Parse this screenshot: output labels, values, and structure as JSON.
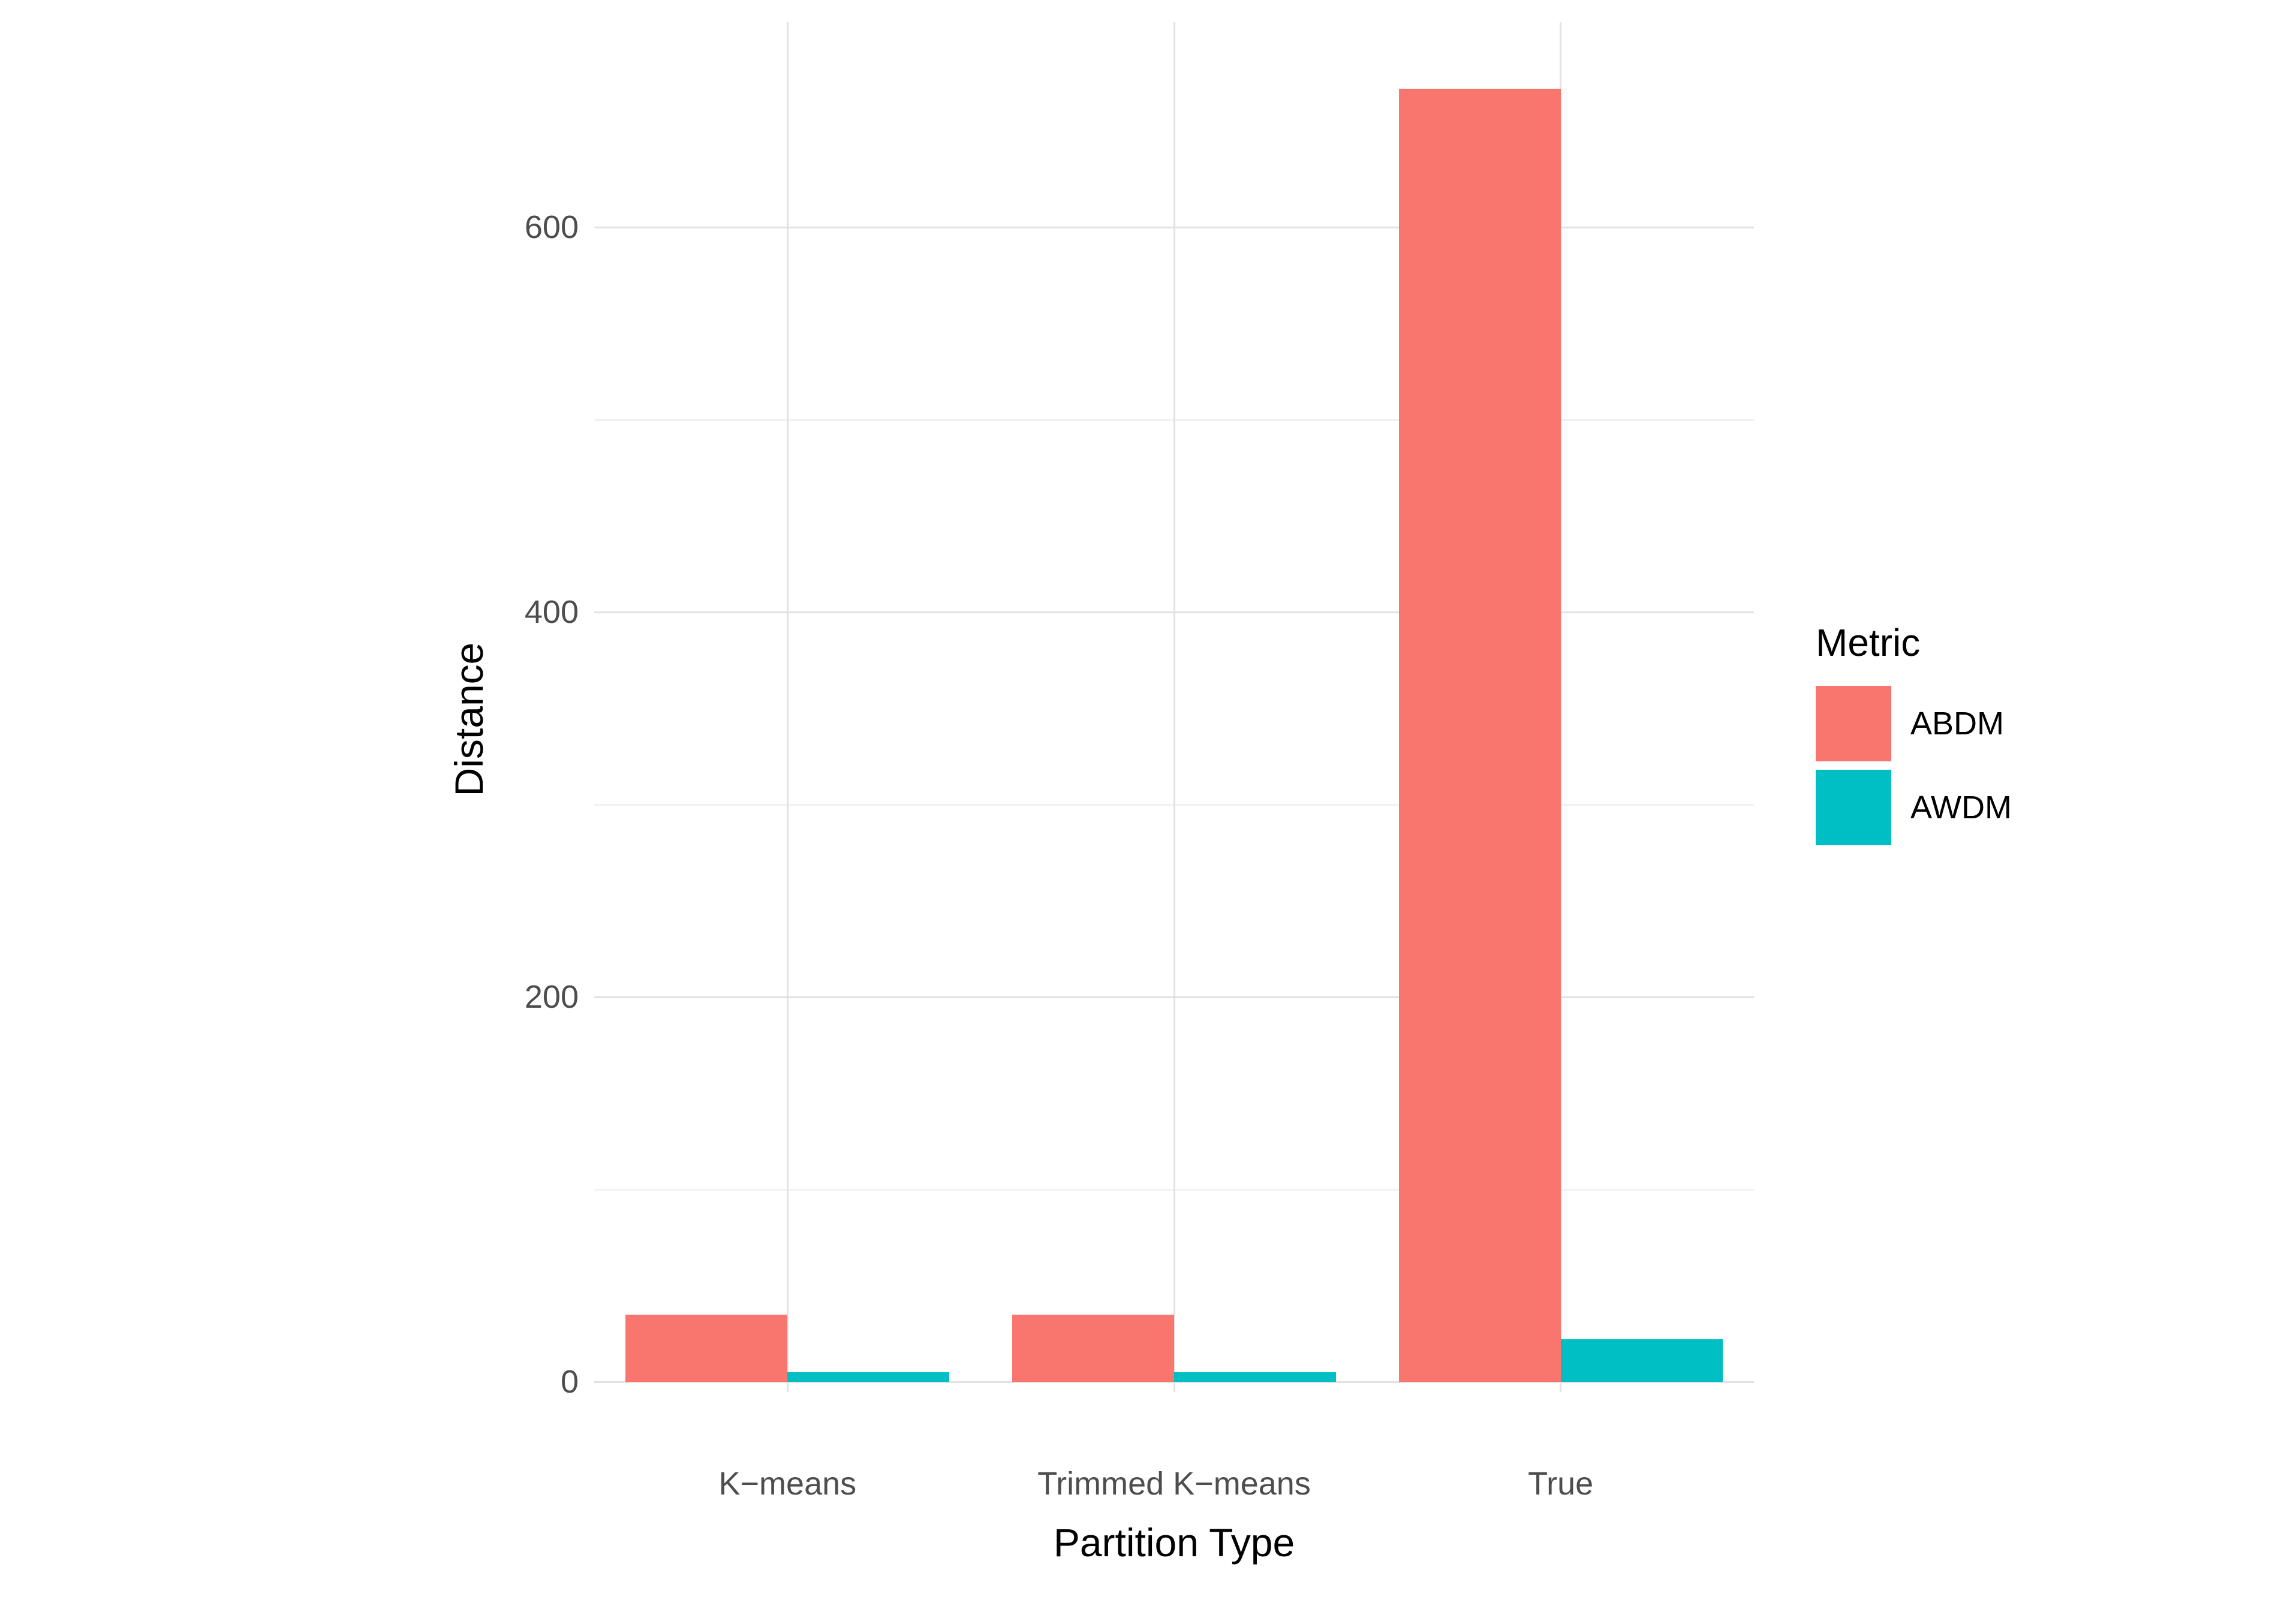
{
  "chart_data": {
    "type": "bar",
    "title": "",
    "xlabel": "Partition Type",
    "ylabel": "Distance",
    "legend_title": "Metric",
    "legend_position": "right",
    "categories": [
      "K−means",
      "Trimmed K−means",
      "True"
    ],
    "series": [
      {
        "name": "ABDM",
        "color": "#F8766D",
        "values": [
          35,
          35,
          672
        ]
      },
      {
        "name": "AWDM",
        "color": "#00BFC4",
        "values": [
          5,
          5,
          22
        ]
      }
    ],
    "y_ticks": [
      0,
      200,
      400,
      600
    ],
    "y_minor_ticks": [
      100,
      300,
      500
    ],
    "ylim": [
      0,
      707
    ],
    "grid": true,
    "bar_layout": "dodged"
  }
}
